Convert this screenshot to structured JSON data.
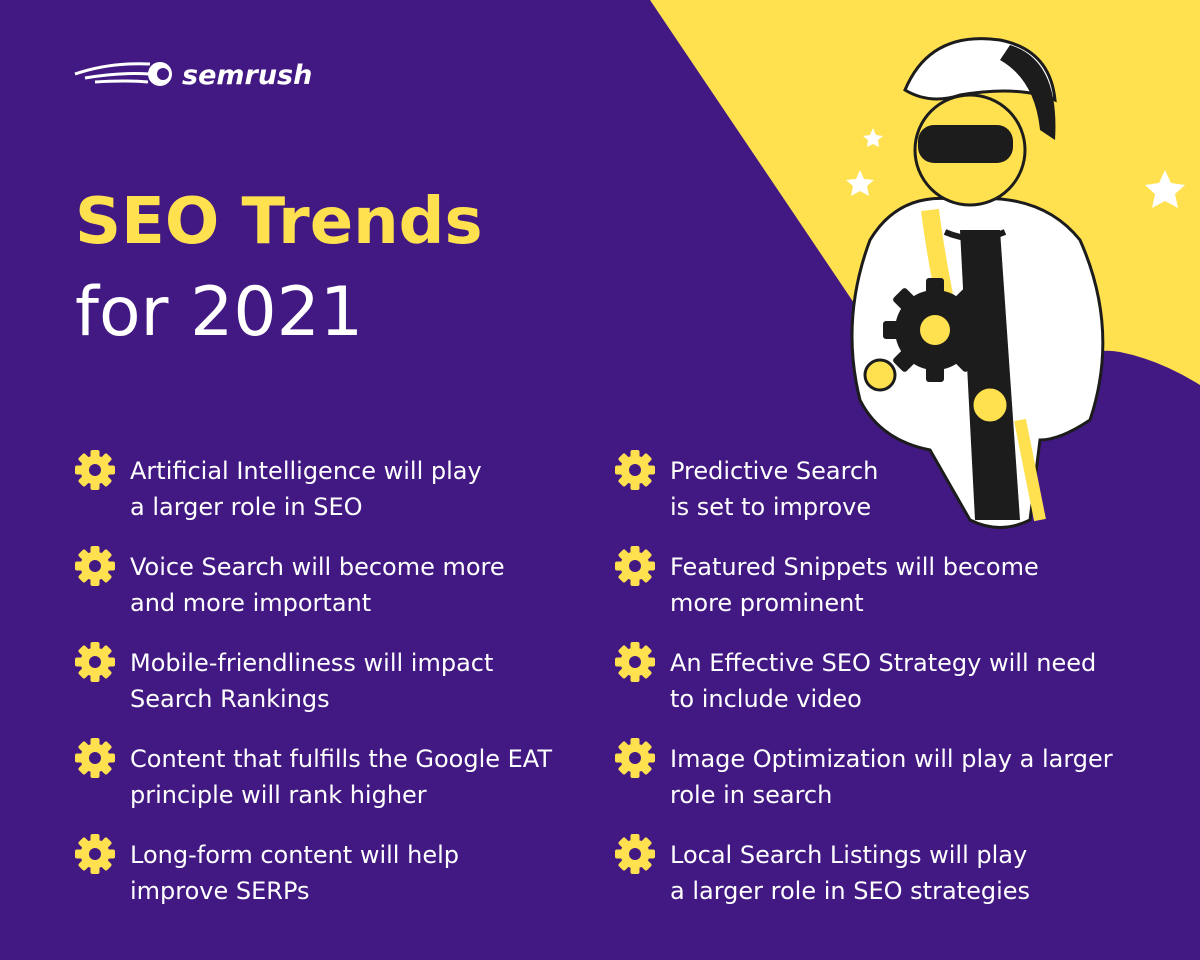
{
  "brand": "semrush",
  "header": {
    "title": "SEO Trends",
    "subtitle": "for 2021"
  },
  "left_column": [
    [
      "Artificial Intelligence will play",
      "a larger role in SEO"
    ],
    [
      "Voice Search will become more",
      "and more important"
    ],
    [
      "Mobile-friendliness will impact",
      "Search Rankings"
    ],
    [
      "Content that fulfills the Google EAT",
      "principle will rank higher"
    ],
    [
      "Long-form content will help",
      "improve SERPs"
    ]
  ],
  "right_column": [
    [
      "Predictive Search",
      "is set to improve"
    ],
    [
      "Featured Snippets will become",
      "more prominent"
    ],
    [
      "An Effective SEO Strategy will need",
      "to include video"
    ],
    [
      "Image Optimization will play a larger",
      "role in search"
    ],
    [
      "Local Search Listings will play",
      "a larger role in SEO strategies"
    ]
  ]
}
